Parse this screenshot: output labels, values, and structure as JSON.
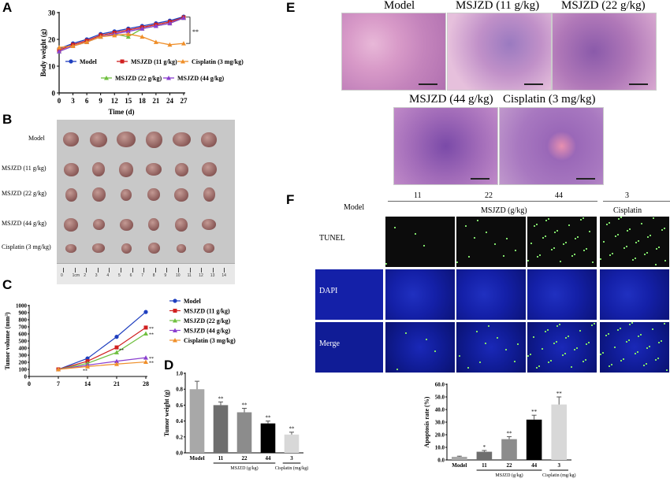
{
  "panels": {
    "a": "A",
    "b": "B",
    "c": "C",
    "d": "D",
    "e": "E",
    "f": "F"
  },
  "colors": {
    "model": "#1f3fbf",
    "msjzd11": "#d02020",
    "msjzd22": "#6fbf3f",
    "msjzd44": "#8a3fcf",
    "cisplatin": "#ef8f2a"
  },
  "panelA": {
    "chart_data": {
      "type": "line",
      "xlabel": "Time (d)",
      "ylabel": "Body weight (g)",
      "x": [
        0,
        3,
        6,
        9,
        12,
        15,
        18,
        21,
        24,
        27
      ],
      "ylim": [
        0,
        30
      ],
      "yticks": [
        0,
        10,
        20,
        30
      ],
      "series": [
        {
          "name": "Model",
          "values": [
            16.5,
            18.5,
            20,
            22,
            23,
            24,
            25,
            26,
            27,
            28.5
          ]
        },
        {
          "name": "MSJZD (11 g/kg)",
          "values": [
            16,
            18,
            19.5,
            21.5,
            22.5,
            23.5,
            24.5,
            25.5,
            26.5,
            28.2
          ]
        },
        {
          "name": "MSJZD (22 g/kg)",
          "values": [
            15.5,
            17.5,
            19,
            21,
            22,
            21,
            24,
            25,
            26,
            28
          ]
        },
        {
          "name": "MSJZD (44 g/kg)",
          "values": [
            15.5,
            17.5,
            19,
            21,
            22,
            23,
            24,
            25,
            26,
            28
          ]
        },
        {
          "name": "Cisplatin (3 mg/kg)",
          "values": [
            17,
            17.5,
            19,
            21,
            21.5,
            22,
            21,
            19,
            18,
            18.5
          ]
        }
      ],
      "annotation": "**"
    }
  },
  "panelB": {
    "rows": [
      "Model",
      "MSJZD (11 g/kg)",
      "MSJZD (22 g/kg)",
      "MSJZD (44 g/kg)",
      "Cisplatin (3 mg/kg)"
    ],
    "ruler": [
      "0",
      "1cm",
      "2",
      "3",
      "4",
      "5",
      "6",
      "7",
      "8",
      "9",
      "10",
      "11",
      "12",
      "13",
      "14"
    ]
  },
  "panelC": {
    "chart_data": {
      "type": "line",
      "xlabel": "",
      "ylabel": "Tumor volume (mm³)",
      "x": [
        7,
        14,
        21,
        28
      ],
      "xticks": [
        0,
        7,
        14,
        21,
        28
      ],
      "ylim": [
        0,
        1000
      ],
      "yticks": [
        0,
        100,
        200,
        300,
        400,
        500,
        600,
        700,
        800,
        900,
        1000
      ],
      "series": [
        {
          "name": "Model",
          "values": [
            100,
            255,
            560,
            910
          ]
        },
        {
          "name": "MSJZD (11 g/kg)",
          "values": [
            100,
            215,
            410,
            690
          ]
        },
        {
          "name": "MSJZD (22 g/kg)",
          "values": [
            100,
            185,
            340,
            605
          ]
        },
        {
          "name": "MSJZD (44 g/kg)",
          "values": [
            100,
            160,
            215,
            265
          ]
        },
        {
          "name": "Cisplatin (3 mg/kg)",
          "values": [
            100,
            140,
            175,
            205
          ]
        }
      ],
      "sig": "**"
    }
  },
  "panelD": {
    "chart_data": {
      "type": "bar",
      "ylabel": "Tumor weight (g)",
      "categories": [
        "Model",
        "11",
        "22",
        "44",
        "3"
      ],
      "values": [
        0.8,
        0.6,
        0.51,
        0.37,
        0.23
      ],
      "errors": [
        0.1,
        0.04,
        0.05,
        0.03,
        0.03
      ],
      "colors": [
        "#a8a8a8",
        "#6e6e6e",
        "#8c8c8c",
        "#000000",
        "#d8d8d8"
      ],
      "sig": [
        "",
        "**",
        "**",
        "**",
        "**"
      ],
      "ylim": [
        0,
        1.0
      ],
      "yticks": [
        "0.0",
        "0.2",
        "0.4",
        "0.6",
        "0.8",
        "1.0"
      ],
      "group1": "MSJZD (g/kg)",
      "group2": "Cisplatin (mg/kg)"
    }
  },
  "panelE": {
    "titles": [
      "Model",
      "MSJZD (11 g/kg)",
      "MSJZD (22 g/kg)",
      "MSJZD (44 g/kg)",
      "Cisplatin (3 mg/kg)"
    ]
  },
  "panelF": {
    "doses": [
      "11",
      "22",
      "44",
      "3"
    ],
    "msjzd": "MSJZD (g/kg)",
    "cisplatin": "Cisplatin",
    "model": "Model",
    "rows": [
      "TUNEL",
      "DAPI",
      "Merge"
    ],
    "chart_data": {
      "type": "bar",
      "ylabel": "Apoptosis rate (%)",
      "categories": [
        "Model",
        "11",
        "22",
        "44",
        "3"
      ],
      "values": [
        2.5,
        6.5,
        16.5,
        32,
        44
      ],
      "errors": [
        0.5,
        1,
        2,
        3.5,
        6
      ],
      "colors": [
        "#a8a8a8",
        "#6e6e6e",
        "#8c8c8c",
        "#000000",
        "#d8d8d8"
      ],
      "sig": [
        "",
        "*",
        "**",
        "**",
        "**"
      ],
      "ylim": [
        0,
        60
      ],
      "yticks": [
        "0.0",
        "10.0",
        "20.0",
        "30.0",
        "40.0",
        "50.0",
        "60.0"
      ],
      "group1": "MSJZD (g/kg)",
      "group2": "Cisplatin (mg/kg)"
    }
  }
}
